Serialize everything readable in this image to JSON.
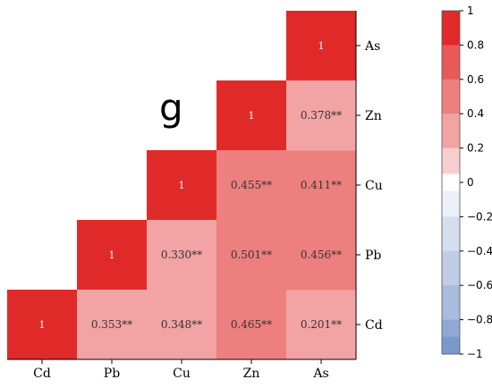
{
  "panel_label": "g",
  "chart_data": {
    "type": "heatmap",
    "variables": [
      "Cd",
      "Pb",
      "Cu",
      "Zn",
      "As"
    ],
    "x_tick_labels": [
      "Cd",
      "Pb",
      "Cu",
      "Zn",
      "As"
    ],
    "y_tick_labels": [
      "As",
      "Zn",
      "Cu",
      "Pb",
      "Cd"
    ],
    "cells": [
      {
        "row": "Cd",
        "col": "Cd",
        "value": 1,
        "label": "1"
      },
      {
        "row": "Pb",
        "col": "Pb",
        "value": 1,
        "label": "1"
      },
      {
        "row": "Cu",
        "col": "Cu",
        "value": 1,
        "label": "1"
      },
      {
        "row": "Zn",
        "col": "Zn",
        "value": 1,
        "label": "1"
      },
      {
        "row": "As",
        "col": "As",
        "value": 1,
        "label": "1"
      },
      {
        "row": "Cd",
        "col": "Pb",
        "value": 0.353,
        "label": "0.353**"
      },
      {
        "row": "Cd",
        "col": "Cu",
        "value": 0.348,
        "label": "0.348**"
      },
      {
        "row": "Cd",
        "col": "Zn",
        "value": 0.465,
        "label": "0.465**"
      },
      {
        "row": "Cd",
        "col": "As",
        "value": 0.201,
        "label": "0.201**"
      },
      {
        "row": "Pb",
        "col": "Cu",
        "value": 0.33,
        "label": "0.330**"
      },
      {
        "row": "Pb",
        "col": "Zn",
        "value": 0.501,
        "label": "0.501**"
      },
      {
        "row": "Pb",
        "col": "As",
        "value": 0.456,
        "label": "0.456**"
      },
      {
        "row": "Cu",
        "col": "Zn",
        "value": 0.455,
        "label": "0.455**"
      },
      {
        "row": "Cu",
        "col": "As",
        "value": 0.411,
        "label": "0.411**"
      },
      {
        "row": "Zn",
        "col": "As",
        "value": 0.378,
        "label": "0.378**"
      }
    ],
    "colorbar": {
      "range": [
        -1,
        1
      ],
      "ticks": [
        1,
        0.8,
        0.6,
        0.4,
        0.2,
        0,
        -0.2,
        -0.4,
        -0.6,
        -0.8,
        -1
      ],
      "tick_labels": [
        "1",
        "0.8",
        "0.6",
        "0.4",
        "0.2",
        "0",
        "−0.2",
        "−0.4",
        "−0.6",
        "−0.8",
        "−1"
      ],
      "bin_colors_top_to_bottom": [
        "#e02a2a",
        "#e85a5a",
        "#ed7f7f",
        "#f2a3a3",
        "#f8cece",
        "#ffffff",
        "#ebf0f8",
        "#d5deef",
        "#c0cde6",
        "#a8bcdd",
        "#8fa9d2",
        "#7a98c9"
      ]
    }
  }
}
